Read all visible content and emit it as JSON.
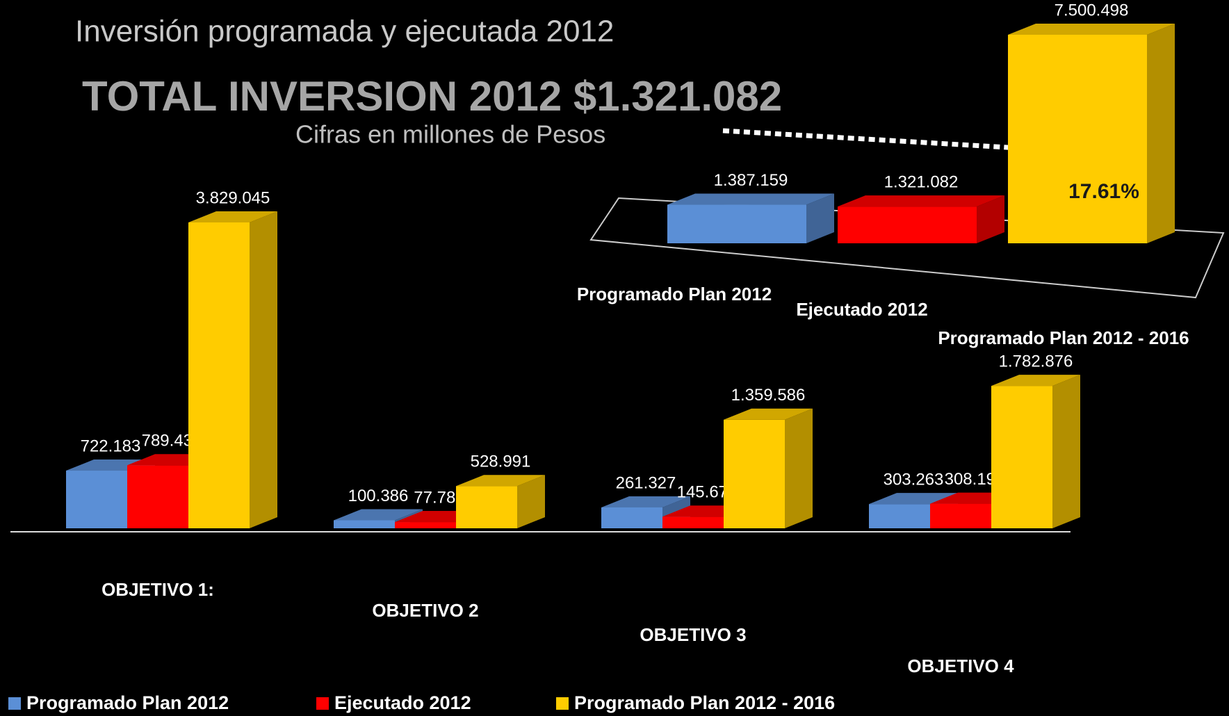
{
  "title": "Inversión programada y ejecutada 2012",
  "headline": "TOTAL INVERSION 2012 $1.321.082",
  "subtitle": "Cifras en millones de Pesos",
  "chart_data": [
    {
      "type": "bar",
      "categories": [
        "OBJETIVO 1:",
        "OBJETIVO 2",
        "OBJETIVO 3",
        "OBJETIVO 4"
      ],
      "series": [
        {
          "name": "Programado Plan 2012",
          "color": "#5b8fd6",
          "values": [
            722183,
            100386,
            261327,
            303263
          ],
          "value_labels": [
            "722.183",
            "100.386",
            "261.327",
            "303.263"
          ]
        },
        {
          "name": "Ejecutado 2012",
          "color": "#ff0000",
          "values": [
            789435,
            77781,
            145672,
            308194
          ],
          "value_labels": [
            "789.435",
            "77.781",
            "145.672",
            "308.194"
          ]
        },
        {
          "name": "Programado Plan 2012 - 2016",
          "color": "#ffcc00",
          "values": [
            3829045,
            528991,
            1359586,
            1782876
          ],
          "value_labels": [
            "3.829.045",
            "528.991",
            "1.359.586",
            "1.782.876"
          ]
        }
      ]
    },
    {
      "type": "bar",
      "categories": [
        "Programado Plan 2012",
        "Ejecutado 2012",
        "Programado Plan 2012  - 2016"
      ],
      "values": [
        1387159,
        1321082,
        7500498
      ],
      "value_labels": [
        "1.387.159",
        "1.321.082",
        "7.500.498"
      ],
      "colors": [
        "#5b8fd6",
        "#ff0000",
        "#ffcc00"
      ],
      "annotation": "17.61%"
    }
  ]
}
